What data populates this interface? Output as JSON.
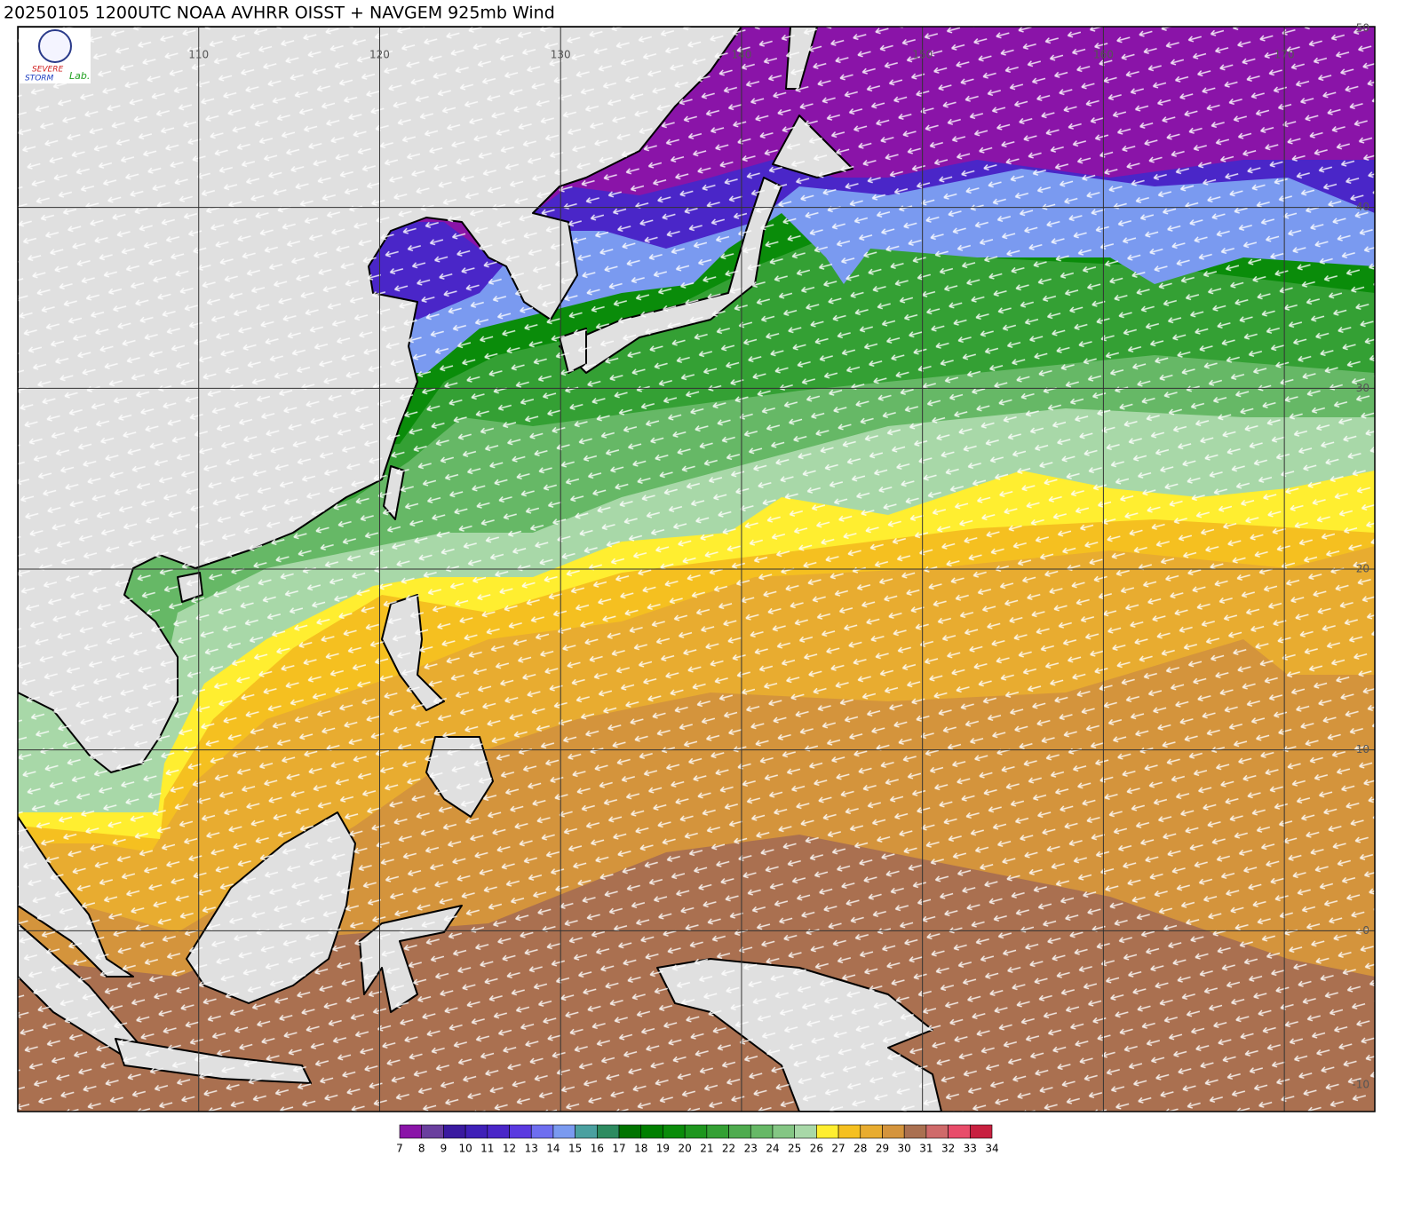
{
  "title": "20250105 1200UTC NOAA AVHRR OISST + NAVGEM 925mb Wind",
  "logo": {
    "line1": "SEVERE",
    "line2": "STORM",
    "line3": "Lab."
  },
  "map": {
    "lon_range": [
      100,
      175
    ],
    "lat_range": [
      -10,
      50
    ],
    "lon_labels": [
      110,
      120,
      130,
      140,
      150,
      160,
      170
    ],
    "lat_labels": [
      50,
      40,
      30,
      20,
      10,
      0,
      -10
    ]
  },
  "colorbar": {
    "labels": [
      7,
      8,
      9,
      10,
      11,
      12,
      13,
      14,
      15,
      16,
      17,
      18,
      19,
      20,
      21,
      22,
      23,
      24,
      25,
      26,
      27,
      28,
      29,
      30,
      31,
      32,
      33,
      34
    ],
    "colors": [
      "#8a14a8",
      "#6a3f9e",
      "#3a1aa0",
      "#3f20b8",
      "#4a26c8",
      "#5a3ae0",
      "#6e6ef0",
      "#7a9af0",
      "#4aa0a0",
      "#2d8b60",
      "#007400",
      "#007f00",
      "#0a8c0a",
      "#1e961e",
      "#34a034",
      "#4eab4e",
      "#66b866",
      "#84c684",
      "#a8d8a8",
      "#ffee30",
      "#f5c020",
      "#e8ac30",
      "#d4943c",
      "#aa7050",
      "#cf6a6a",
      "#e84c6a",
      "#c82040"
    ]
  }
}
